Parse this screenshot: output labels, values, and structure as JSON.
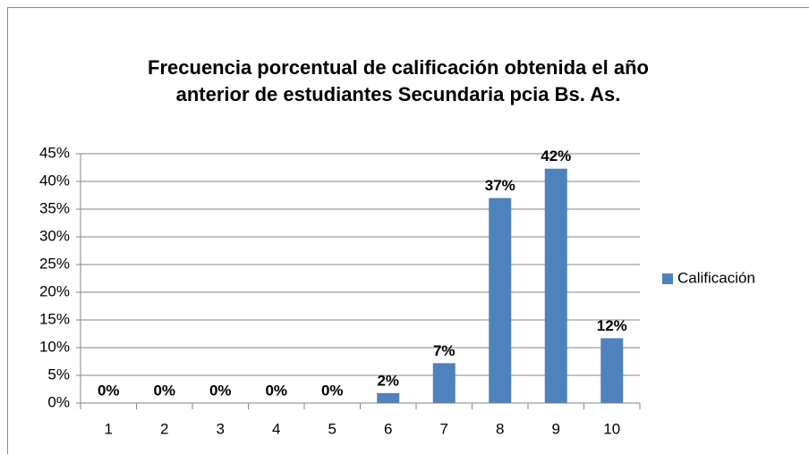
{
  "chart_data": {
    "type": "bar",
    "title": "Frecuencia porcentual de calificación obtenida el año",
    "subtitle": "anterior de estudiantes  Secundaria  pcia Bs. As.",
    "categories": [
      "1",
      "2",
      "3",
      "4",
      "5",
      "6",
      "7",
      "8",
      "9",
      "10"
    ],
    "series": [
      {
        "name": "Calificación",
        "color": "#4f81bd",
        "values": [
          0,
          0,
          0,
          0,
          0,
          1.8,
          7.2,
          37,
          42.3,
          11.7
        ],
        "value_labels": [
          "0%",
          "0%",
          "0%",
          "0%",
          "0%",
          "2%",
          "7%",
          "37%",
          "42%",
          "12%"
        ]
      }
    ],
    "ylim": [
      0,
      45
    ],
    "yticks": [
      {
        "value": 0,
        "label": "0%"
      },
      {
        "value": 5,
        "label": "5%"
      },
      {
        "value": 10,
        "label": "10%"
      },
      {
        "value": 15,
        "label": "15%"
      },
      {
        "value": 20,
        "label": "20%"
      },
      {
        "value": 25,
        "label": "25%"
      },
      {
        "value": 30,
        "label": "30%"
      },
      {
        "value": 35,
        "label": "35%"
      },
      {
        "value": 40,
        "label": "40%"
      },
      {
        "value": 45,
        "label": "45%"
      }
    ],
    "grid": true,
    "legend": "right"
  }
}
